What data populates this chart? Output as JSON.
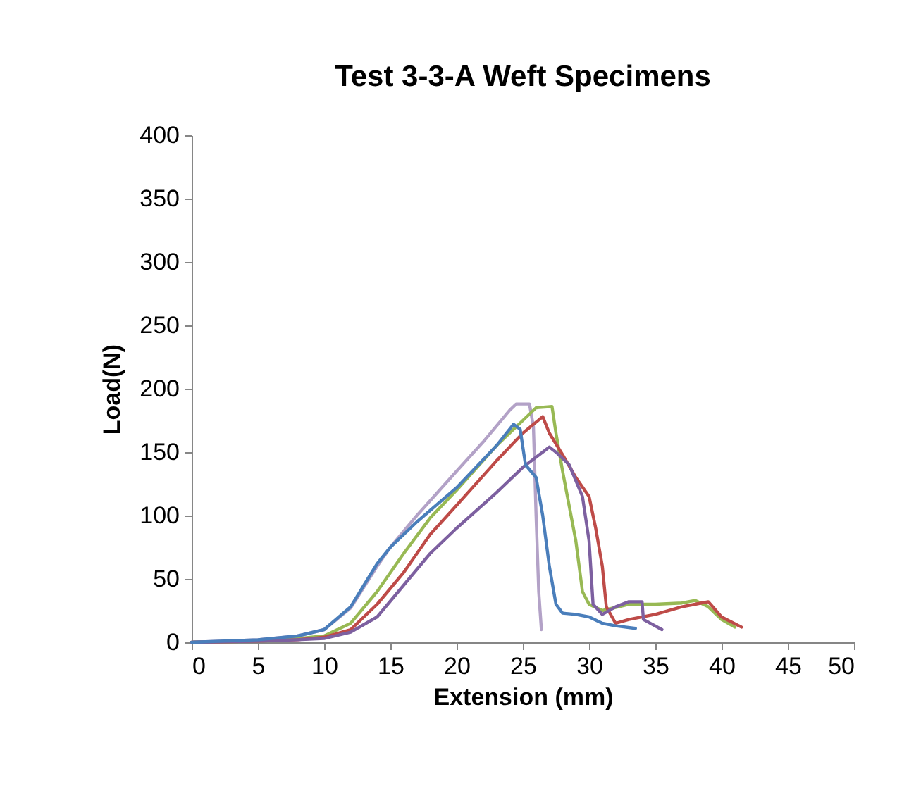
{
  "chart_data": {
    "type": "line",
    "title": "Test 3-3-A Weft Specimens",
    "xlabel": "Extension (mm)",
    "ylabel": "Load(N)",
    "xlim": [
      0,
      50
    ],
    "xticks": [
      0,
      5,
      10,
      15,
      20,
      25,
      30,
      35,
      40,
      45,
      50
    ],
    "ylim": [
      0,
      400
    ],
    "yticks": [
      0,
      50,
      100,
      150,
      200,
      250,
      300,
      350,
      400
    ],
    "grid": false,
    "marker": "none",
    "line_style": "solid",
    "series": [
      {
        "color": "#b3a2c7",
        "x": [
          0,
          5,
          8,
          10,
          12,
          14,
          15,
          17,
          20,
          22,
          24,
          24.5,
          25.5,
          25.8,
          26,
          26.2,
          26.4
        ],
        "values": [
          0,
          2,
          5,
          10,
          27,
          60,
          75,
          100,
          135,
          158,
          183,
          188,
          188,
          170,
          100,
          40,
          10
        ]
      },
      {
        "color": "#98b954",
        "x": [
          0,
          5,
          8,
          10,
          12,
          14,
          16,
          18,
          20,
          23,
          25,
          26,
          27.2,
          27.5,
          28,
          29,
          29.5,
          30,
          31,
          33,
          35,
          37,
          38,
          39,
          40,
          41
        ],
        "values": [
          0,
          1,
          3,
          5,
          15,
          40,
          70,
          98,
          120,
          155,
          175,
          185,
          186,
          165,
          135,
          80,
          40,
          30,
          25,
          30,
          30,
          31,
          33,
          28,
          18,
          12
        ]
      },
      {
        "color": "#be4b48",
        "x": [
          0,
          5,
          8,
          10,
          12,
          14,
          16,
          18,
          20,
          23,
          25,
          26.5,
          27,
          28,
          29,
          30,
          30.5,
          31,
          31.3,
          32,
          33,
          35,
          37,
          38,
          39,
          40,
          41.5
        ],
        "values": [
          0,
          1,
          2,
          4,
          10,
          30,
          55,
          85,
          108,
          143,
          165,
          178,
          165,
          148,
          130,
          115,
          90,
          60,
          28,
          15,
          18,
          22,
          28,
          30,
          32,
          20,
          12
        ]
      },
      {
        "color": "#7d60a0",
        "x": [
          0,
          5,
          8,
          10,
          12,
          14,
          16,
          18,
          20,
          23,
          25,
          26.5,
          27,
          27.5,
          28.5,
          29.5,
          30,
          30.3,
          31,
          32,
          33,
          34,
          34.1,
          35.5
        ],
        "values": [
          0,
          1,
          2,
          3,
          8,
          20,
          45,
          70,
          90,
          118,
          138,
          150,
          154,
          150,
          140,
          115,
          80,
          30,
          22,
          28,
          32,
          32,
          18,
          10
        ]
      },
      {
        "color": "#4a7ebb",
        "x": [
          0,
          5,
          8,
          10,
          12,
          13,
          14,
          15,
          17,
          20,
          23,
          24.3,
          24.8,
          25.2,
          26,
          26.5,
          27,
          27.5,
          28,
          29,
          30,
          31,
          32,
          33.5
        ],
        "values": [
          0,
          2,
          5,
          10,
          28,
          45,
          62,
          75,
          95,
          122,
          155,
          172,
          168,
          140,
          130,
          100,
          60,
          30,
          23,
          22,
          20,
          15,
          13,
          11
        ]
      }
    ]
  }
}
